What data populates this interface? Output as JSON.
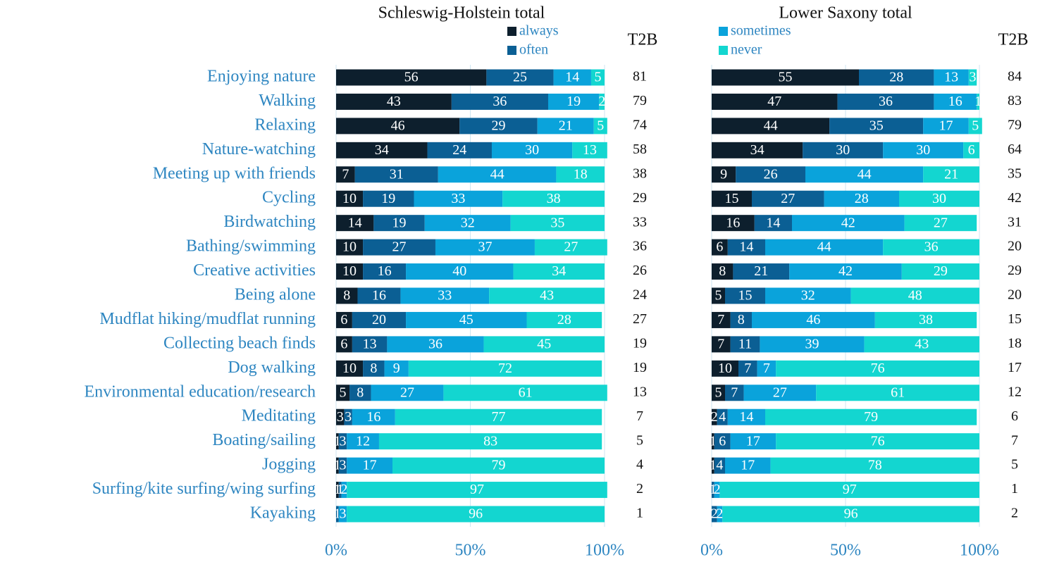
{
  "chart_data": [
    {
      "type": "stacked_bar",
      "orientation": "horizontal",
      "title": "Schleswig-Holstein total",
      "categories": [
        "Enjoying nature",
        "Walking",
        "Relaxing",
        "Nature-watching",
        "Meeting up with friends",
        "Cycling",
        "Birdwatching",
        "Bathing/swimming",
        "Creative activities",
        "Being alone",
        "Mudflat hiking/mudflat running",
        "Collecting beach finds",
        "Dog walking",
        "Environmental education/research",
        "Meditating",
        "Boating/sailing",
        "Jogging",
        "Surfing/kite surfing/wing surfing",
        "Kayaking"
      ],
      "series": [
        {
          "name": "always",
          "color": "#0d1f2d",
          "values": [
            56,
            43,
            46,
            34,
            7,
            10,
            14,
            10,
            10,
            8,
            6,
            6,
            10,
            5,
            3,
            1,
            1,
            1,
            0
          ]
        },
        {
          "name": "often",
          "color": "#0b5f94",
          "values": [
            25,
            36,
            29,
            24,
            31,
            19,
            19,
            27,
            16,
            16,
            20,
            13,
            8,
            8,
            3,
            3,
            3,
            1,
            1
          ]
        },
        {
          "color": "#0aa3db",
          "values": [
            14,
            19,
            21,
            30,
            44,
            33,
            32,
            37,
            40,
            33,
            45,
            36,
            9,
            27,
            16,
            12,
            17,
            2,
            3
          ]
        },
        {
          "color": "#13d6d0",
          "values": [
            5,
            2,
            5,
            13,
            18,
            38,
            35,
            27,
            34,
            43,
            28,
            45,
            72,
            61,
            77,
            83,
            79,
            97,
            96
          ]
        }
      ],
      "t2b": {
        "label": "T2B",
        "values": [
          81,
          79,
          74,
          58,
          38,
          29,
          33,
          36,
          26,
          24,
          27,
          19,
          19,
          13,
          7,
          5,
          4,
          2,
          1
        ]
      },
      "xlim": [
        0,
        100
      ],
      "xticks": [
        {
          "value": 0,
          "label": "0%"
        },
        {
          "value": 50,
          "label": "50%"
        },
        {
          "value": 100,
          "label": "100%"
        }
      ],
      "grid": true
    },
    {
      "type": "stacked_bar",
      "orientation": "horizontal",
      "title": "Lower Saxony total",
      "series": [
        {
          "color": "#0d1f2d",
          "values": [
            55,
            47,
            44,
            34,
            9,
            15,
            16,
            6,
            8,
            5,
            7,
            7,
            10,
            5,
            2,
            1,
            1,
            0,
            0
          ]
        },
        {
          "color": "#0b5f94",
          "values": [
            28,
            36,
            35,
            30,
            26,
            27,
            14,
            14,
            21,
            15,
            8,
            11,
            7,
            7,
            4,
            6,
            4,
            1,
            2
          ]
        },
        {
          "name": "sometimes",
          "color": "#0aa3db",
          "values": [
            13,
            16,
            17,
            30,
            44,
            28,
            42,
            44,
            42,
            32,
            46,
            39,
            7,
            27,
            14,
            17,
            17,
            2,
            2
          ]
        },
        {
          "name": "never",
          "color": "#13d6d0",
          "values": [
            3,
            1,
            5,
            6,
            21,
            30,
            27,
            36,
            29,
            48,
            38,
            43,
            76,
            61,
            79,
            76,
            78,
            97,
            96
          ]
        }
      ],
      "t2b": {
        "label": "T2B",
        "values": [
          84,
          83,
          79,
          64,
          35,
          42,
          31,
          20,
          29,
          20,
          15,
          18,
          17,
          12,
          6,
          7,
          5,
          1,
          2
        ]
      },
      "xlim": [
        0,
        100
      ],
      "xticks": [
        {
          "value": 0,
          "label": "0%"
        },
        {
          "value": 50,
          "label": "50%"
        },
        {
          "value": 100,
          "label": "100%"
        }
      ],
      "grid": true
    }
  ]
}
